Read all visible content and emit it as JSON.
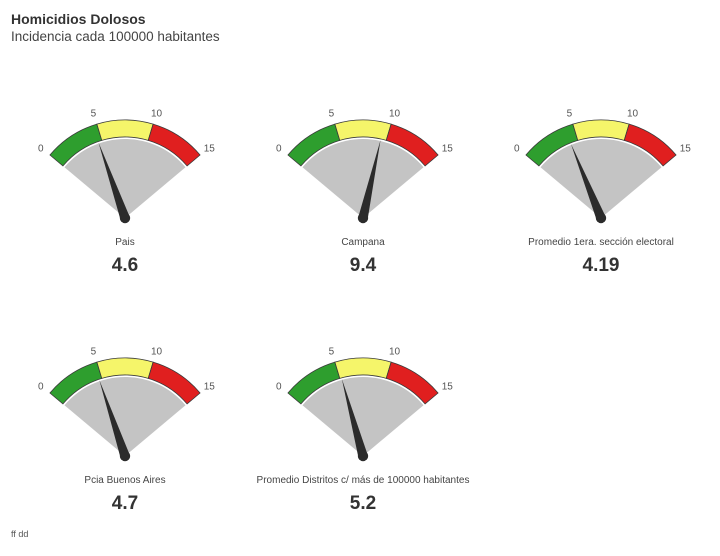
{
  "header": {
    "title": "Homicidios Dolosos",
    "subtitle": "Incidencia cada 100000 habitantes"
  },
  "footer": {
    "credit": "ff dd"
  },
  "chart_data": {
    "type": "gauge",
    "title": "Homicidios Dolosos",
    "subtitle": "Incidencia cada 100000 habitantes",
    "range": [
      0,
      15
    ],
    "ticks": [
      0,
      5,
      10,
      15
    ],
    "tick_labels": [
      "0",
      "5",
      "10",
      "15"
    ],
    "bands": [
      {
        "from": 0,
        "to": 5,
        "color": "#2e9e2e"
      },
      {
        "from": 5,
        "to": 10,
        "color": "#f5f56a"
      },
      {
        "from": 10,
        "to": 15,
        "color": "#e01f1f"
      }
    ],
    "gauges": [
      {
        "label": "Pais",
        "value": 4.6,
        "value_label": "4.6"
      },
      {
        "label": "Campana",
        "value": 9.4,
        "value_label": "9.4"
      },
      {
        "label": "Promedio 1era. sección electoral",
        "value": 4.19,
        "value_label": "4.19"
      },
      {
        "label": "Pcia Buenos Aires",
        "value": 4.7,
        "value_label": "4.7"
      },
      {
        "label": "Promedio Distritos c/ más de 100000 habitantes",
        "value": 5.2,
        "value_label": "5.2"
      }
    ]
  }
}
